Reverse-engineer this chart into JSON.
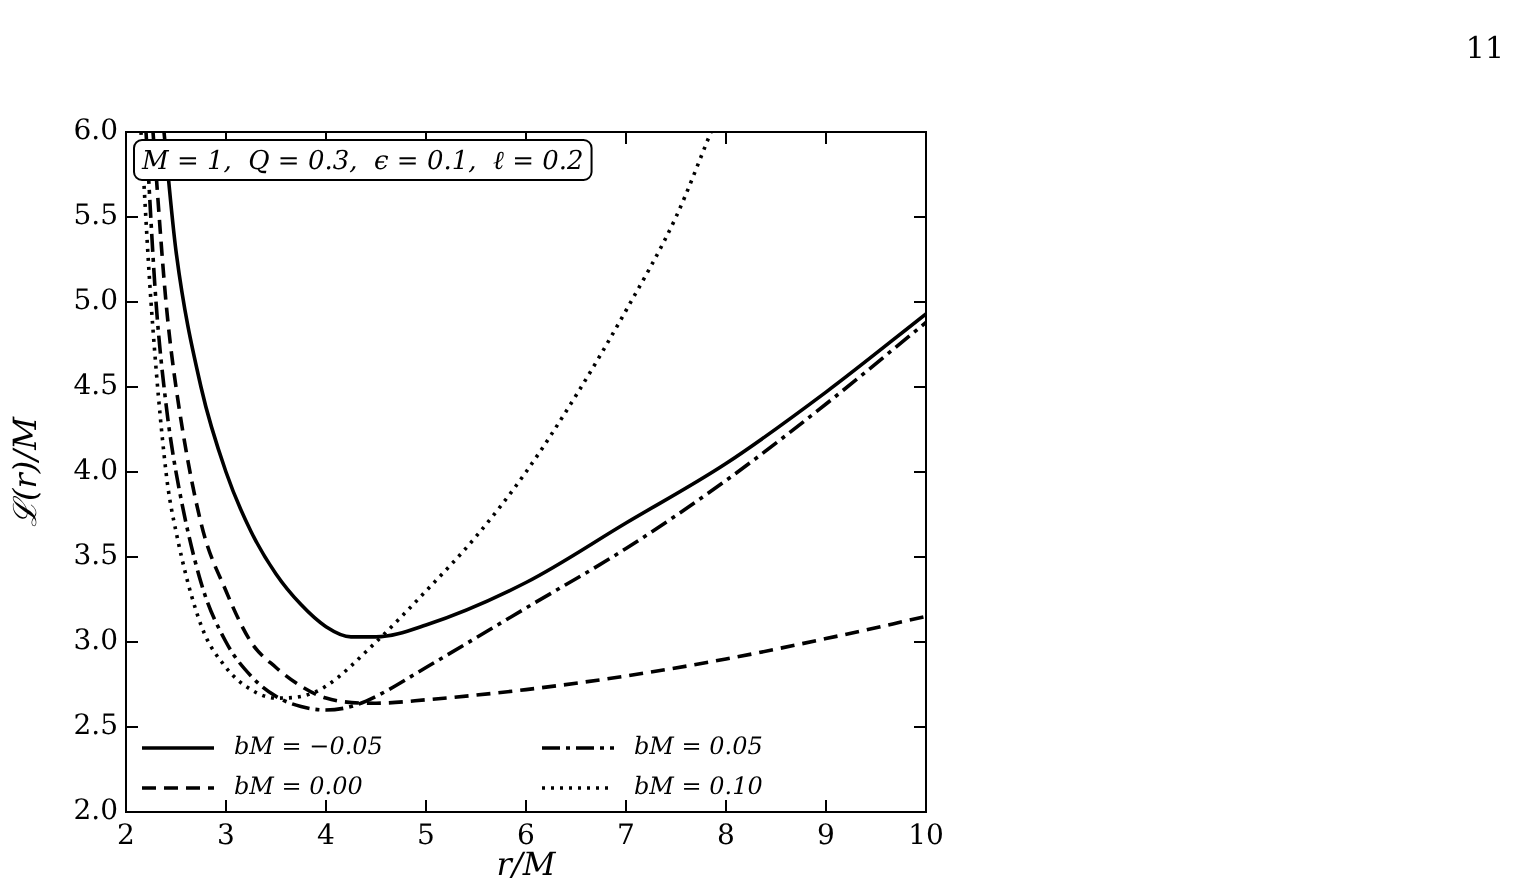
{
  "chart_data": {
    "type": "line",
    "xlabel": "r/M",
    "ylabel": "ℒ(r)/M",
    "annotations": [
      "M = 1,  Q = 0.3,  ϵ = 0.1,  ℓ = 0.2",
      "11"
    ],
    "xlim": [
      2,
      10
    ],
    "xticks": [
      2,
      3,
      4,
      5,
      6,
      7,
      8,
      9,
      10
    ],
    "ylim": [
      2,
      6
    ],
    "yticks": [
      {
        "value": 2,
        "label": "2.0"
      },
      {
        "value": 2.5,
        "label": "2.5"
      },
      {
        "value": 3,
        "label": "3.0"
      },
      {
        "value": 3.5,
        "label": "3.5"
      },
      {
        "value": 4,
        "label": "4.0"
      },
      {
        "value": 4.5,
        "label": "4.5"
      },
      {
        "value": 5,
        "label": "5.0"
      },
      {
        "value": 5.5,
        "label": "5.5"
      },
      {
        "value": 6,
        "label": "6.0"
      }
    ],
    "grid": false,
    "legend": "bottom left",
    "marker": "none",
    "series": [
      {
        "name": "bM = −0.05",
        "color": "#000000",
        "line_style": "solid",
        "x": [
          2.38,
          2.5,
          2.75,
          3,
          3.25,
          3.5,
          3.75,
          4,
          4.25,
          4.5,
          5,
          6,
          7,
          8,
          9,
          10
        ],
        "values": [
          6.0,
          5.3,
          4.5,
          4.0,
          3.65,
          3.4,
          3.22,
          3.09,
          3.03,
          3.03,
          3.1,
          3.35,
          3.7,
          4.05,
          4.47,
          4.93
        ]
      },
      {
        "name": "bM = 0.00",
        "color": "#000000",
        "line_style": "dashed",
        "x": [
          2.27,
          2.4,
          2.5,
          2.75,
          3,
          3.25,
          3.5,
          3.75,
          4,
          4.5,
          5,
          6,
          7,
          8,
          9,
          10
        ],
        "values": [
          6.0,
          5.0,
          4.5,
          3.7,
          3.3,
          3.0,
          2.85,
          2.74,
          2.67,
          2.64,
          2.66,
          2.72,
          2.8,
          2.9,
          3.02,
          3.15
        ]
      },
      {
        "name": "bM = 0.05",
        "color": "#000000",
        "line_style": "dashdot",
        "x": [
          2.2,
          2.3,
          2.4,
          2.5,
          2.75,
          3,
          3.25,
          3.5,
          3.75,
          4,
          4.25,
          4.5,
          5,
          6,
          7,
          8,
          9,
          10
        ],
        "values": [
          6.0,
          5.0,
          4.4,
          4.0,
          3.35,
          3.0,
          2.8,
          2.68,
          2.62,
          2.6,
          2.62,
          2.68,
          2.85,
          3.2,
          3.55,
          3.95,
          4.4,
          4.88
        ]
      },
      {
        "name": "bM = 0.10",
        "color": "#000000",
        "line_style": "dotted",
        "x": [
          2.15,
          2.25,
          2.4,
          2.5,
          2.75,
          3,
          3.25,
          3.5,
          3.75,
          4,
          4.5,
          5,
          5.5,
          6,
          6.5,
          7,
          7.5,
          7.85
        ],
        "values": [
          6.0,
          5.0,
          4.0,
          3.65,
          3.1,
          2.85,
          2.72,
          2.67,
          2.68,
          2.74,
          3.0,
          3.3,
          3.62,
          4.0,
          4.45,
          4.95,
          5.5,
          6.0
        ]
      }
    ]
  }
}
